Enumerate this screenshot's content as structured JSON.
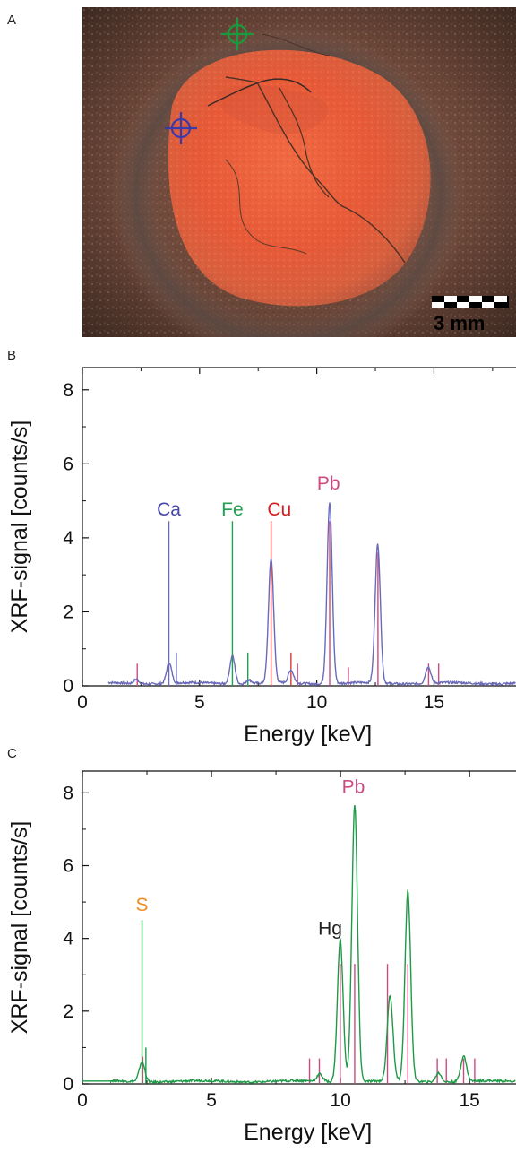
{
  "panels": {
    "a_label": "A",
    "b_label": "B",
    "c_label": "C"
  },
  "photo": {
    "scale_bar_text": "3 mm",
    "markers": [
      {
        "name": "green-crosshair",
        "color": "#1a9a3c"
      },
      {
        "name": "blue-crosshair",
        "color": "#3a3aa8"
      }
    ]
  },
  "chart_data": [
    {
      "type": "line",
      "panel": "B",
      "xlabel": "Energy  [keV]",
      "ylabel": "XRF-signal  [counts/s]",
      "xlim": [
        0,
        18.5
      ],
      "ylim": [
        0,
        8.6
      ],
      "xticks": [
        0,
        5,
        10,
        15
      ],
      "yticks": [
        0,
        2,
        4,
        6,
        8
      ],
      "series_color": "#6a6ab8",
      "peaks": [
        {
          "x": 2.3,
          "y": 0.12
        },
        {
          "x": 3.7,
          "y": 0.55
        },
        {
          "x": 6.4,
          "y": 0.75
        },
        {
          "x": 7.1,
          "y": 0.1
        },
        {
          "x": 8.05,
          "y": 3.35
        },
        {
          "x": 8.9,
          "y": 0.35
        },
        {
          "x": 10.55,
          "y": 4.9
        },
        {
          "x": 12.6,
          "y": 3.75
        },
        {
          "x": 14.75,
          "y": 0.45
        }
      ],
      "reference_lines": [
        {
          "x": 3.69,
          "h": 4.45,
          "color": "#6a6ab8"
        },
        {
          "x": 4.01,
          "h": 0.9,
          "color": "#6a6ab8"
        },
        {
          "x": 6.4,
          "h": 4.45,
          "color": "#22a050"
        },
        {
          "x": 7.06,
          "h": 0.9,
          "color": "#22a050"
        },
        {
          "x": 8.05,
          "h": 4.45,
          "color": "#d23a3a"
        },
        {
          "x": 8.9,
          "h": 0.9,
          "color": "#d23a3a"
        },
        {
          "x": 2.34,
          "h": 0.6,
          "color": "#cc4a80"
        },
        {
          "x": 9.18,
          "h": 0.6,
          "color": "#cc4a80"
        },
        {
          "x": 10.55,
          "h": 4.45,
          "color": "#cc4a80"
        },
        {
          "x": 11.35,
          "h": 0.5,
          "color": "#cc4a80"
        },
        {
          "x": 12.61,
          "h": 3.6,
          "color": "#cc4a80"
        },
        {
          "x": 14.77,
          "h": 0.6,
          "color": "#cc4a80"
        },
        {
          "x": 15.2,
          "h": 0.6,
          "color": "#cc4a80"
        }
      ],
      "element_labels": [
        {
          "text": "Ca",
          "x": 3.69,
          "y": 4.6,
          "color": "#4848a8"
        },
        {
          "text": "Fe",
          "x": 6.4,
          "y": 4.6,
          "color": "#22a050"
        },
        {
          "text": "Cu",
          "x": 8.4,
          "y": 4.6,
          "color": "#d21e1e"
        },
        {
          "text": "Pb",
          "x": 10.5,
          "y": 5.3,
          "color": "#cc4a80"
        }
      ]
    },
    {
      "type": "line",
      "panel": "C",
      "xlabel": "Energy  [keV]",
      "ylabel": "XRF-signal  [counts/s]",
      "xlim": [
        0,
        16.8
      ],
      "ylim": [
        0,
        8.6
      ],
      "xticks": [
        0,
        5,
        10,
        15
      ],
      "yticks": [
        0,
        2,
        4,
        6,
        8
      ],
      "series_color": "#1e9a46",
      "peaks": [
        {
          "x": 2.31,
          "y": 0.55
        },
        {
          "x": 9.2,
          "y": 0.2
        },
        {
          "x": 9.99,
          "y": 3.9
        },
        {
          "x": 10.55,
          "y": 7.6
        },
        {
          "x": 11.92,
          "y": 2.35
        },
        {
          "x": 12.61,
          "y": 5.2
        },
        {
          "x": 13.8,
          "y": 0.25
        },
        {
          "x": 14.77,
          "y": 0.7
        }
      ],
      "reference_lines": [
        {
          "x": 2.31,
          "h": 4.5,
          "color": "#1e9a46"
        },
        {
          "x": 2.46,
          "h": 1.0,
          "color": "#1e9a46"
        },
        {
          "x": 2.34,
          "h": 0.75,
          "color": "#cc4a80"
        },
        {
          "x": 8.8,
          "h": 0.7,
          "color": "#cc4a80"
        },
        {
          "x": 9.18,
          "h": 0.7,
          "color": "#cc4a80"
        },
        {
          "x": 9.99,
          "h": 3.3,
          "color": "#cc4a80"
        },
        {
          "x": 10.55,
          "h": 3.3,
          "color": "#cc4a80"
        },
        {
          "x": 11.82,
          "h": 3.3,
          "color": "#cc4a80"
        },
        {
          "x": 12.61,
          "h": 3.3,
          "color": "#cc4a80"
        },
        {
          "x": 13.75,
          "h": 0.7,
          "color": "#cc4a80"
        },
        {
          "x": 14.1,
          "h": 0.7,
          "color": "#cc4a80"
        },
        {
          "x": 14.77,
          "h": 0.7,
          "color": "#cc4a80"
        },
        {
          "x": 15.2,
          "h": 0.7,
          "color": "#cc4a80"
        }
      ],
      "element_labels": [
        {
          "text": "S",
          "x": 2.31,
          "y": 4.75,
          "color": "#f08c1e"
        },
        {
          "text": "Hg",
          "x": 9.6,
          "y": 4.1,
          "color": "#222222"
        },
        {
          "text": "Pb",
          "x": 10.5,
          "y": 8.0,
          "color": "#cc4a80"
        }
      ]
    }
  ]
}
